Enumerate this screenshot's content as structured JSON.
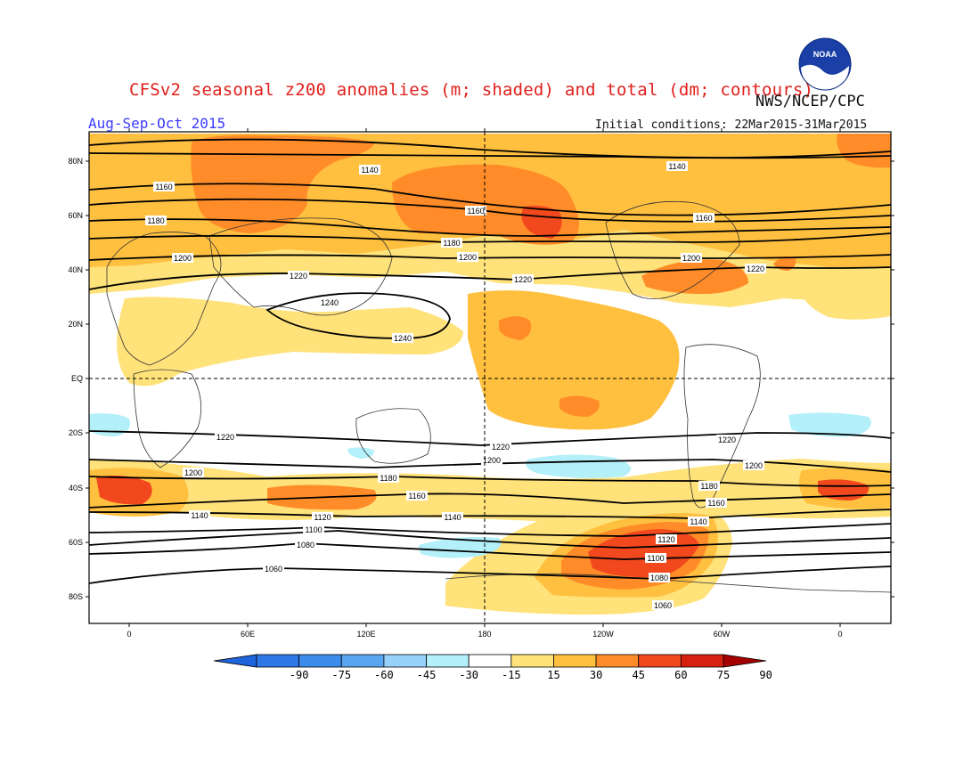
{
  "title": "CFSv2 seasonal z200 anomalies (m; shaded) and total (dm; contours)",
  "agency": "NWS/NCEP/CPC",
  "season": "Aug-Sep-Oct 2015",
  "initial_conditions": "Initial conditions: 22Mar2015-31Mar2015",
  "logo_text": "NOAA",
  "axes": {
    "lat_ticks": [
      "80N",
      "60N",
      "40N",
      "20N",
      "EQ",
      "20S",
      "40S",
      "60S",
      "80S"
    ],
    "lon_ticks": [
      "0",
      "60E",
      "120E",
      "180",
      "120W",
      "60W",
      "0"
    ]
  },
  "contour_labels": [
    "1060",
    "1080",
    "1100",
    "1120",
    "1140",
    "1160",
    "1180",
    "1200",
    "1220",
    "1240"
  ],
  "colorbar": {
    "labels": [
      "-90",
      "-75",
      "-60",
      "-45",
      "-30",
      "-15",
      "15",
      "30",
      "45",
      "60",
      "75",
      "90"
    ],
    "colors": [
      "#1e64dc",
      "#2d78e6",
      "#3c8ceb",
      "#5aa5f0",
      "#96d2fa",
      "#b4f0fa",
      "#ffffff",
      "#ffe27a",
      "#ffc040",
      "#ff8c28",
      "#f2481e",
      "#d72010",
      "#a50000"
    ]
  }
}
